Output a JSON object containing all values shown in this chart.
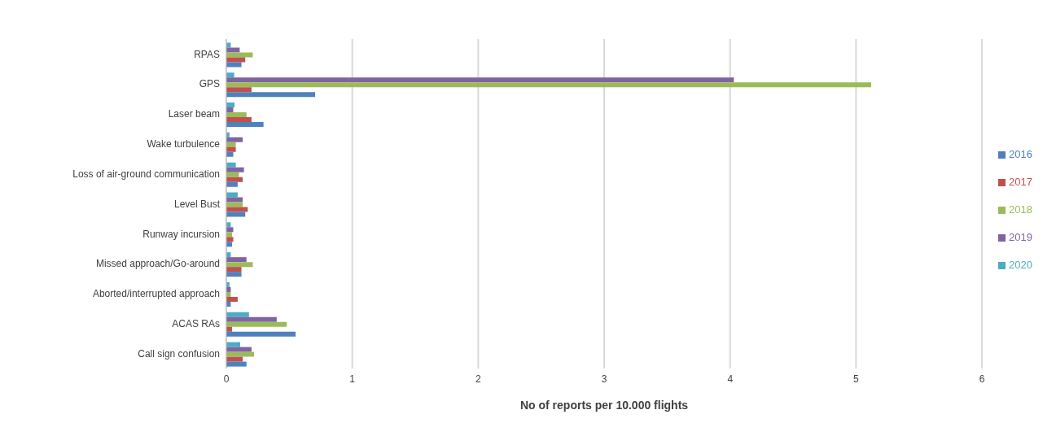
{
  "chart_data": {
    "type": "bar",
    "orientation": "horizontal",
    "xlabel": "No of reports per 10.000  flights",
    "categories": [
      "RPAS",
      "GPS",
      "Laser beam",
      "Wake turbulence",
      "Loss of air-ground communication",
      "Level Bust",
      "Runway incursion",
      "Missed approach/Go-around",
      "Aborted/interrupted approach",
      "ACAS RAs",
      "Call sign confusion"
    ],
    "series": [
      {
        "name": "2020",
        "color": "#4bacc6",
        "values": [
          0.035,
          0.062,
          0.065,
          0.025,
          0.075,
          0.09,
          0.035,
          0.035,
          0.025,
          0.18,
          0.11
        ]
      },
      {
        "name": "2019",
        "color": "#8064a2",
        "values": [
          0.106,
          4.03,
          0.055,
          0.13,
          0.14,
          0.13,
          0.055,
          0.16,
          0.035,
          0.4,
          0.2
        ]
      },
      {
        "name": "2018",
        "color": "#9bbb59",
        "values": [
          0.21,
          5.12,
          0.16,
          0.075,
          0.1,
          0.13,
          0.045,
          0.21,
          0.035,
          0.48,
          0.22
        ]
      },
      {
        "name": "2017",
        "color": "#c0504d",
        "values": [
          0.15,
          0.2,
          0.2,
          0.075,
          0.13,
          0.17,
          0.055,
          0.12,
          0.09,
          0.045,
          0.13
        ]
      },
      {
        "name": "2016",
        "color": "#4f81bd",
        "values": [
          0.12,
          0.705,
          0.295,
          0.055,
          0.09,
          0.15,
          0.045,
          0.12,
          0.035,
          0.55,
          0.16
        ]
      }
    ],
    "xlim": [
      0,
      6
    ],
    "xticks": [
      0,
      1,
      2,
      3,
      4,
      5,
      6
    ],
    "grid": "x",
    "legend": "right"
  }
}
